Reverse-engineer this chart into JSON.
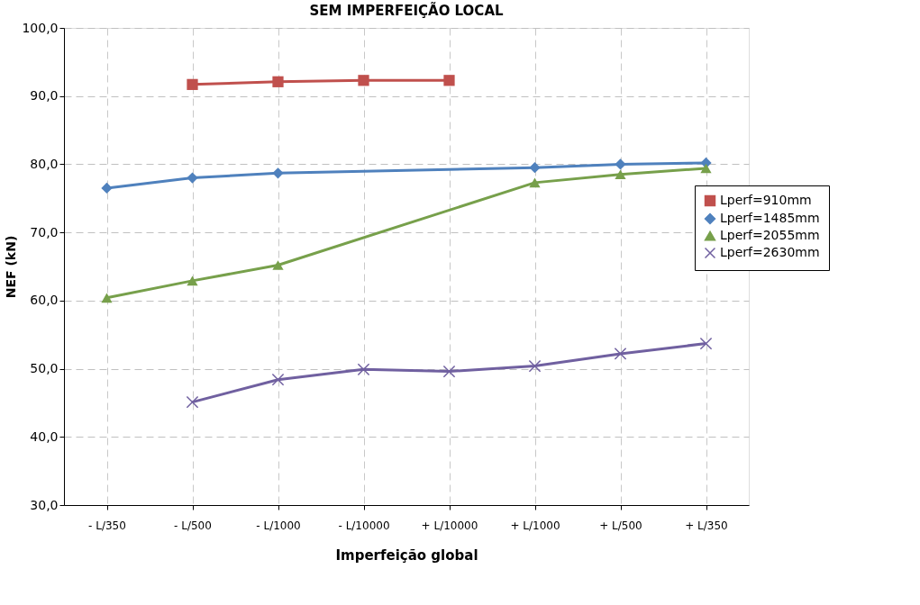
{
  "chart_data": {
    "type": "line",
    "title": "SEM IMPERFEIÇÃO LOCAL",
    "xlabel": "Imperfeição global",
    "ylabel": "NEF (kN)",
    "categories": [
      "- L/350",
      "- L/500",
      "- L/1000",
      "- L/10000",
      "+ L/10000",
      "+ L/1000",
      "+ L/500",
      "+ L/350"
    ],
    "series": [
      {
        "name": "Lperf=910mm",
        "color": "#c0504d",
        "marker": "square",
        "values": [
          null,
          91.7,
          92.1,
          92.3,
          92.3,
          null,
          null,
          null
        ]
      },
      {
        "name": "Lperf=1485mm",
        "color": "#4f81bd",
        "marker": "diamond",
        "values": [
          76.5,
          78.0,
          78.7,
          null,
          null,
          79.5,
          80.0,
          80.2
        ]
      },
      {
        "name": "Lperf=2055mm",
        "color": "#77a04b",
        "marker": "triangle",
        "values": [
          60.4,
          62.9,
          65.2,
          null,
          null,
          77.3,
          78.5,
          79.4
        ]
      },
      {
        "name": "Lperf=2630mm",
        "color": "#7060a0",
        "marker": "cross",
        "values": [
          null,
          45.1,
          48.4,
          49.9,
          49.6,
          50.4,
          52.2,
          53.7
        ]
      }
    ],
    "ylim": [
      30,
      100
    ],
    "yticks": [
      {
        "value": 30,
        "label": "30,0"
      },
      {
        "value": 40,
        "label": "40,0"
      },
      {
        "value": 50,
        "label": "50,0"
      },
      {
        "value": 60,
        "label": "60,0"
      },
      {
        "value": 70,
        "label": "70,0"
      },
      {
        "value": 80,
        "label": "80,0"
      },
      {
        "value": 90,
        "label": "90,0"
      },
      {
        "value": 100,
        "label": "100,0"
      }
    ],
    "grid": true,
    "legend": "right",
    "line_style": "solid"
  }
}
